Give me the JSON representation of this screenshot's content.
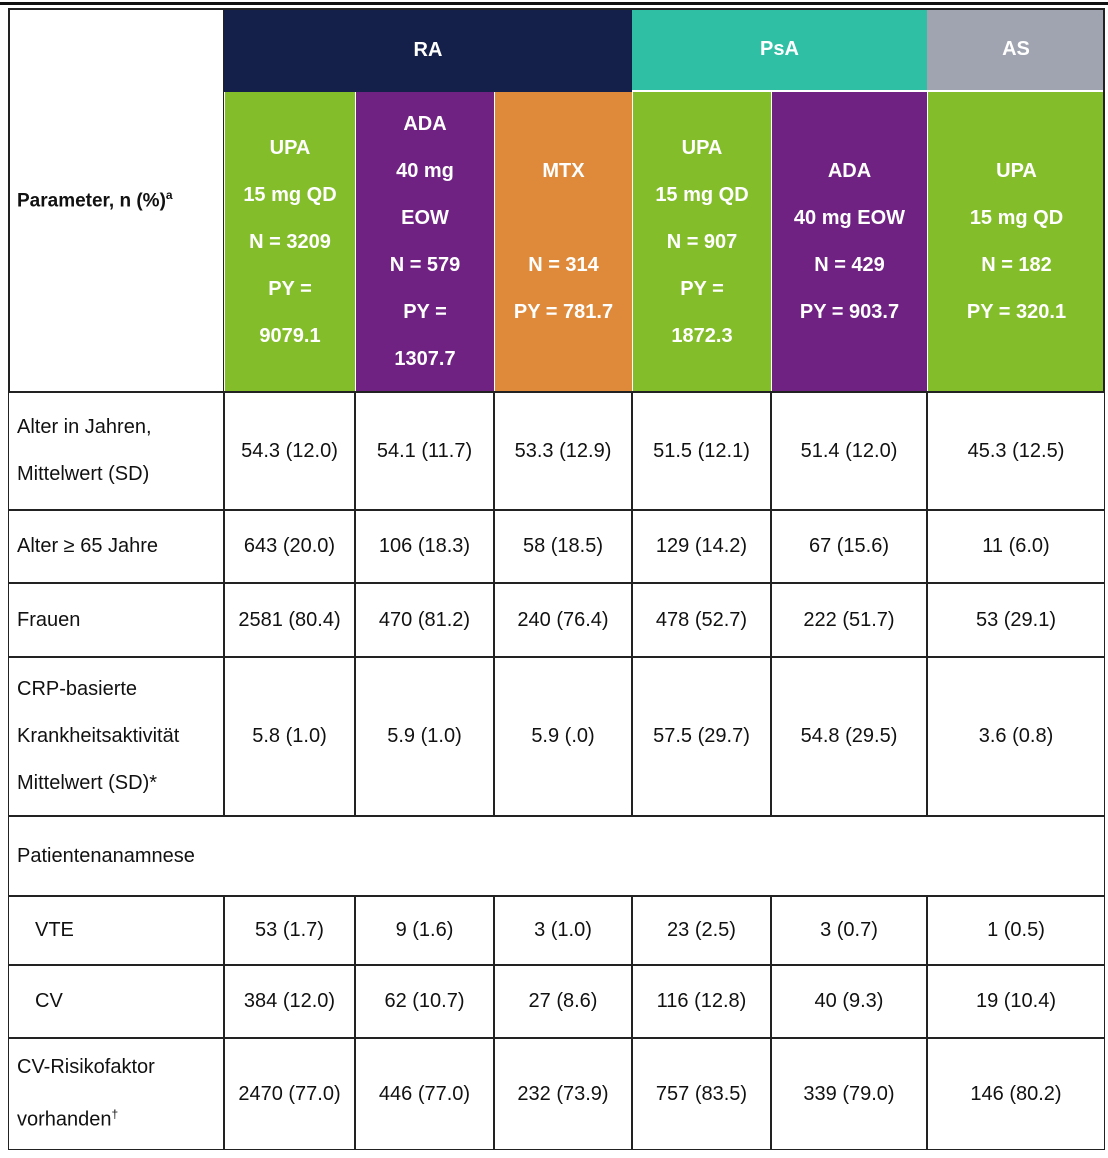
{
  "table": {
    "parameter_header": {
      "text": "Parameter, n (%)",
      "sup": "a"
    },
    "groups": [
      {
        "label": "RA"
      },
      {
        "label": "PsA"
      },
      {
        "label": "AS"
      }
    ],
    "columns": [
      {
        "lines": [
          "UPA",
          "15 mg QD",
          "N = 3209",
          "PY =",
          "9079.1"
        ]
      },
      {
        "lines": [
          "ADA",
          "40 mg",
          "EOW",
          "N = 579",
          "PY =",
          "1307.7"
        ]
      },
      {
        "lines": [
          "MTX",
          "N = 314",
          "PY = 781.7"
        ]
      },
      {
        "lines": [
          "UPA",
          "15 mg QD",
          "N = 907",
          "PY =",
          "1872.3"
        ]
      },
      {
        "lines": [
          "ADA",
          "40 mg EOW",
          "N = 429",
          "PY = 903.7"
        ]
      },
      {
        "lines": [
          "UPA",
          "15 mg QD",
          "N = 182",
          "PY = 320.1"
        ]
      }
    ],
    "rows": [
      {
        "label": [
          "Alter in Jahren,",
          "Mittelwert (SD)"
        ],
        "values": [
          "54.3 (12.0)",
          "54.1 (11.7)",
          "53.3 (12.9)",
          "51.5 (12.1)",
          "51.4 (12.0)",
          "45.3 (12.5)"
        ]
      },
      {
        "label": [
          "Alter ≥ 65 Jahre"
        ],
        "values": [
          "643 (20.0)",
          "106 (18.3)",
          "58 (18.5)",
          "129 (14.2)",
          "67 (15.6)",
          "11 (6.0)"
        ]
      },
      {
        "label": [
          "Frauen"
        ],
        "values": [
          "2581 (80.4)",
          "470 (81.2)",
          "240 (76.4)",
          "478 (52.7)",
          "222 (51.7)",
          "53 (29.1)"
        ]
      },
      {
        "label": [
          "CRP-basierte",
          "Krankheitsaktivität",
          "Mittelwert (SD)*"
        ],
        "values": [
          "5.8 (1.0)",
          "5.9 (1.0)",
          "5.9 (.0)",
          "57.5 (29.7)",
          "54.8 (29.5)",
          "3.6 (0.8)"
        ]
      },
      {
        "label": [
          "Patientenanamnese"
        ]
      },
      {
        "label": [
          "VTE"
        ],
        "values": [
          "53 (1.7)",
          "9 (1.6)",
          "3 (1.0)",
          "23 (2.5)",
          "3 (0.7)",
          "1 (0.5)"
        ]
      },
      {
        "label": [
          "CV"
        ],
        "values": [
          "384 (12.0)",
          "62 (10.7)",
          "27 (8.6)",
          "116 (12.8)",
          "40 (9.3)",
          "19 (10.4)"
        ]
      },
      {
        "label": [
          "CV-Risikofaktor",
          "vorhanden"
        ],
        "label_sup": "†",
        "values": [
          "2470 (77.0)",
          "446 (77.0)",
          "232 (73.9)",
          "757 (83.5)",
          "339 (79.0)",
          "146 (80.2)"
        ]
      }
    ]
  }
}
